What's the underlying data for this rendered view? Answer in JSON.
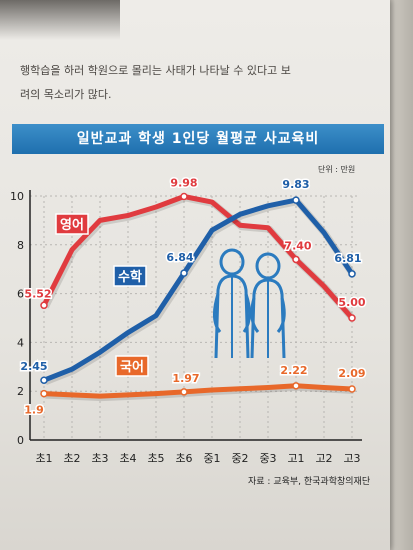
{
  "page": {
    "body_lines": [
      "행학습을 하러 학원으로 몰리는 사태가 나타날 수 있다고 보",
      "려의 목소리가 많다."
    ],
    "unit_label": "단위 : 만원",
    "source_label": "자료 : 교육부, 한국과학창의재단"
  },
  "colors": {
    "english": "#e03b3f",
    "math": "#1f5fa8",
    "korean": "#e8682a",
    "title_bar": "#2a7dbd",
    "grid": "#b8b6b2",
    "figure": "#2b7bbf"
  },
  "icons": [
    "people-illustration"
  ],
  "chart_data": {
    "type": "line",
    "title": "일반교과 학생 1인당 월평균 사교육비",
    "categories": [
      "초1",
      "초2",
      "초3",
      "초4",
      "초5",
      "초6",
      "중1",
      "중2",
      "중3",
      "고1",
      "고2",
      "고3"
    ],
    "ylim": [
      0,
      10
    ],
    "yticks": [
      "0",
      "2",
      "4",
      "6",
      "8",
      "10"
    ],
    "grid": true,
    "series": [
      {
        "name": "영어",
        "color": "#e03b3f",
        "values": [
          5.52,
          7.8,
          9.0,
          9.2,
          9.55,
          9.98,
          9.75,
          8.8,
          8.7,
          7.4,
          6.3,
          5.0
        ],
        "labels": {
          "0": "5.52",
          "5": "9.98",
          "9": "7.40",
          "11": "5.00"
        }
      },
      {
        "name": "수학",
        "color": "#1f5fa8",
        "values": [
          2.45,
          2.9,
          3.6,
          4.4,
          5.1,
          6.84,
          8.6,
          9.25,
          9.6,
          9.83,
          8.5,
          6.81
        ],
        "labels": {
          "0": "2.45",
          "5": "6.84",
          "9": "9.83",
          "11": "6.81"
        }
      },
      {
        "name": "국어",
        "color": "#e8682a",
        "values": [
          1.9,
          1.85,
          1.8,
          1.85,
          1.9,
          1.97,
          2.05,
          2.1,
          2.15,
          2.22,
          2.15,
          2.09
        ],
        "labels": {
          "0": "1.9",
          "5": "1.97",
          "9": "2.22",
          "11": "2.09"
        }
      }
    ]
  }
}
